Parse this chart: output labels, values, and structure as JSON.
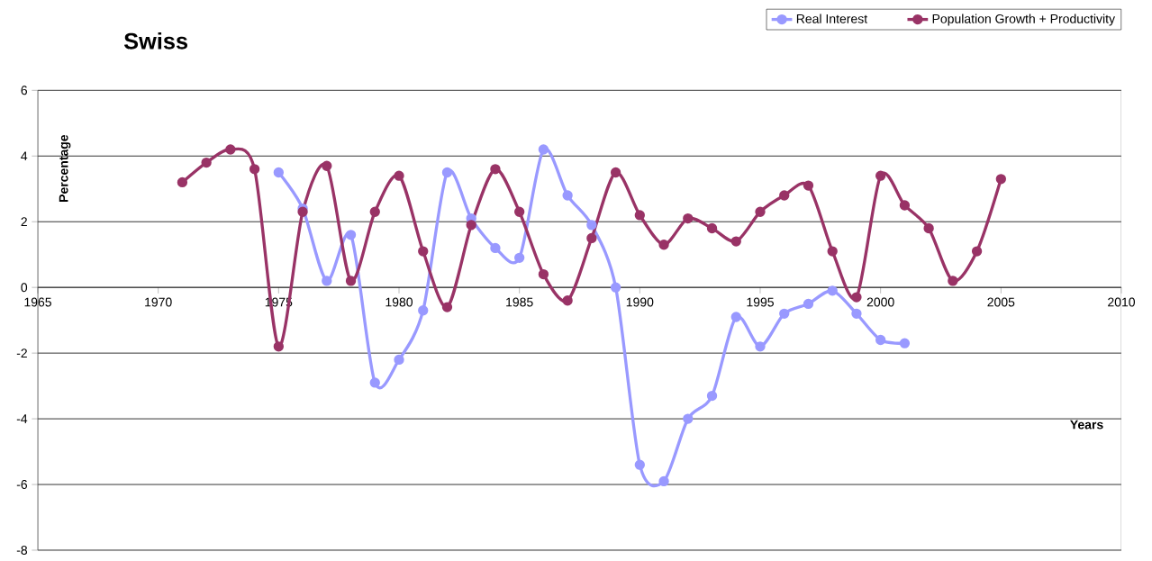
{
  "chart_data": {
    "type": "line",
    "title": "Swiss",
    "xlabel": "Years",
    "ylabel": "Percentage",
    "x": [
      1971,
      1972,
      1973,
      1974,
      1975,
      1976,
      1977,
      1978,
      1979,
      1980,
      1981,
      1982,
      1983,
      1984,
      1985,
      1986,
      1987,
      1988,
      1989,
      1990,
      1991,
      1992,
      1993,
      1994,
      1995,
      1996,
      1997,
      1998,
      1999,
      2000,
      2001,
      2002,
      2003,
      2004,
      2005
    ],
    "series": [
      {
        "name": "Real Interest",
        "color": "#9999ff",
        "values": [
          null,
          null,
          null,
          null,
          3.5,
          2.4,
          0.2,
          1.6,
          -2.9,
          -2.2,
          -0.7,
          3.5,
          2.1,
          1.2,
          0.9,
          4.2,
          2.8,
          1.9,
          0.0,
          -5.4,
          -5.9,
          -4.0,
          -3.3,
          -0.9,
          -1.8,
          -0.8,
          -0.5,
          -0.1,
          -0.8,
          -1.6,
          -1.7,
          null,
          null,
          null,
          null
        ]
      },
      {
        "name": "Population Growth + Productivity",
        "color": "#993366",
        "values": [
          3.2,
          3.8,
          4.2,
          3.6,
          -1.8,
          2.3,
          3.7,
          0.2,
          2.3,
          3.4,
          1.1,
          -0.6,
          1.9,
          3.6,
          2.3,
          0.4,
          -0.4,
          1.5,
          3.5,
          2.2,
          1.3,
          2.1,
          1.8,
          1.4,
          2.3,
          2.8,
          3.1,
          1.1,
          -0.3,
          3.4,
          2.5,
          1.8,
          0.2,
          1.1,
          3.3
        ]
      }
    ],
    "xlim": [
      1965,
      2010
    ],
    "xticks": [
      1965,
      1970,
      1975,
      1980,
      1985,
      1990,
      1995,
      2000,
      2005,
      2010
    ],
    "ylim": [
      -8,
      6
    ],
    "yticks": [
      -8,
      -6,
      -4,
      -2,
      0,
      2,
      4,
      6
    ],
    "grid": "y",
    "legend": "top right",
    "marker": "circle",
    "line_style": "solid"
  }
}
